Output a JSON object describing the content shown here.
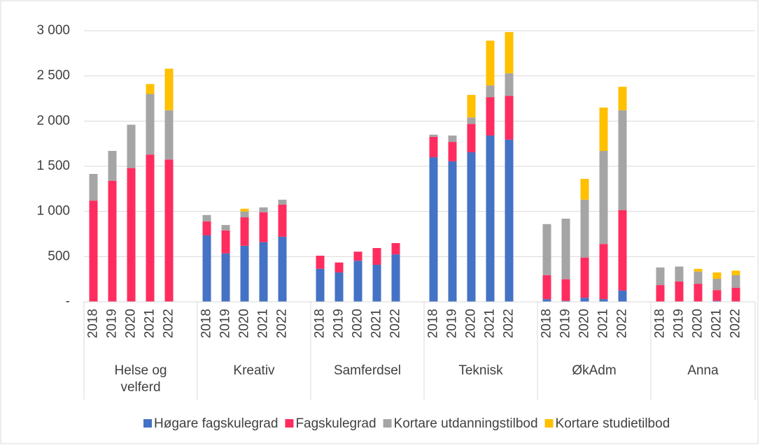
{
  "chart_data": {
    "type": "stacked-bar",
    "groups": [
      {
        "name": "Helse og velferd",
        "categories": [
          "2018",
          "2019",
          "2020",
          "2021",
          "2022"
        ]
      },
      {
        "name": "Kreativ",
        "categories": [
          "2018",
          "2019",
          "2020",
          "2021",
          "2022"
        ]
      },
      {
        "name": "Samferdsel",
        "categories": [
          "2018",
          "2019",
          "2020",
          "2021",
          "2022"
        ]
      },
      {
        "name": "Teknisk",
        "categories": [
          "2018",
          "2019",
          "2020",
          "2021",
          "2022"
        ]
      },
      {
        "name": "ØkAdm",
        "categories": [
          "2018",
          "2019",
          "2020",
          "2021",
          "2022"
        ]
      },
      {
        "name": "Anna",
        "categories": [
          "2018",
          "2019",
          "2020",
          "2021",
          "2022"
        ]
      }
    ],
    "series": [
      {
        "name": "Høgare fagskulegrad",
        "color": "#4472c4",
        "values": [
          0,
          0,
          0,
          0,
          0,
          735,
          535,
          620,
          660,
          720,
          365,
          325,
          455,
          410,
          525,
          1600,
          1555,
          1655,
          1840,
          1795,
          30,
          10,
          45,
          30,
          125,
          0,
          0,
          0,
          10,
          0
        ]
      },
      {
        "name": "Fagskulegrad",
        "color": "#ff2d5f",
        "values": [
          1120,
          1340,
          1480,
          1630,
          1575,
          155,
          255,
          315,
          330,
          355,
          145,
          110,
          100,
          185,
          125,
          225,
          215,
          315,
          425,
          485,
          265,
          240,
          445,
          610,
          890,
          185,
          225,
          200,
          120,
          155
        ]
      },
      {
        "name": "Kortare utdanningstilbod",
        "color": "#a5a5a5",
        "values": [
          295,
          330,
          480,
          670,
          545,
          70,
          60,
          65,
          55,
          55,
          0,
          0,
          0,
          0,
          0,
          25,
          70,
          70,
          130,
          250,
          565,
          670,
          640,
          1030,
          1105,
          195,
          165,
          135,
          125,
          140
        ]
      },
      {
        "name": "Kortare studietilbod",
        "color": "#ffc000",
        "values": [
          0,
          0,
          0,
          110,
          460,
          0,
          0,
          30,
          0,
          0,
          0,
          0,
          0,
          0,
          0,
          0,
          0,
          250,
          495,
          455,
          0,
          0,
          230,
          480,
          260,
          0,
          0,
          30,
          70,
          50
        ]
      }
    ],
    "ylim": [
      0,
      3000
    ],
    "yticks": [
      {
        "value": 0,
        "label": "-"
      },
      500,
      {
        "value": 1000,
        "label": "1 000"
      },
      {
        "value": 1500,
        "label": "1 500"
      },
      {
        "value": 2000,
        "label": "2 000"
      },
      {
        "value": 2500,
        "label": "2 500"
      },
      {
        "value": 3000,
        "label": "3 000"
      }
    ],
    "grid": true
  }
}
